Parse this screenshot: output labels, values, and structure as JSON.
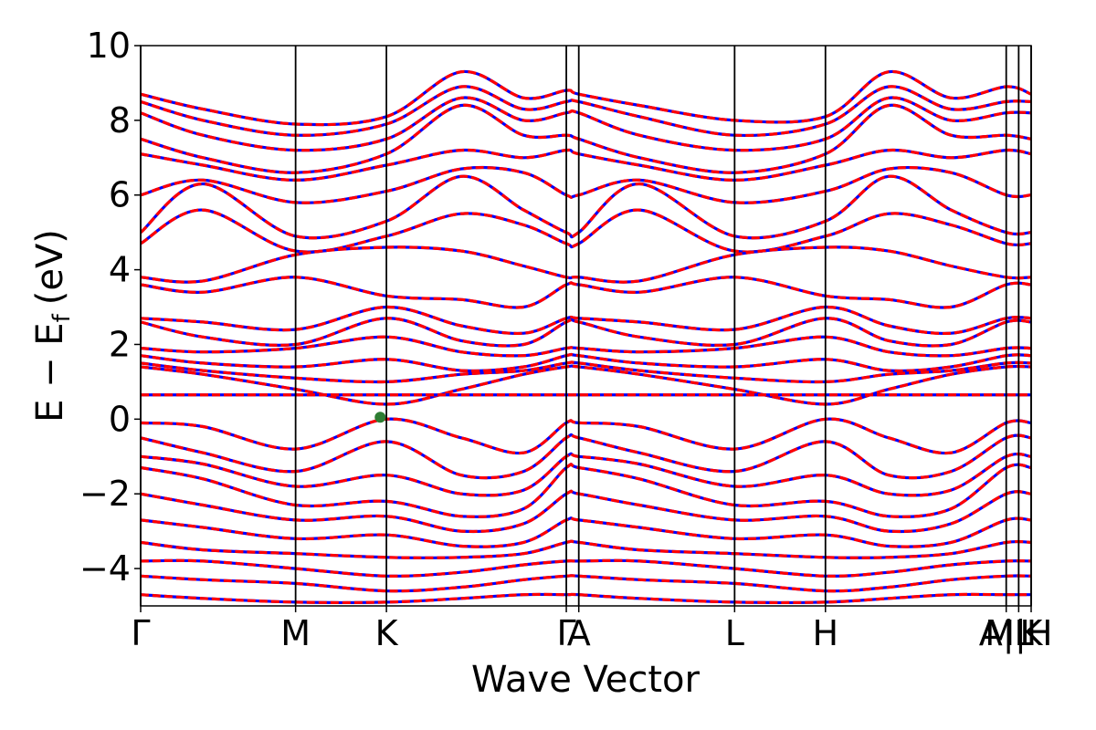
{
  "chart_data": {
    "type": "line",
    "title": "",
    "xlabel": "Wave Vector",
    "ylabel": "E − E",
    "ylabel_subscript": "f",
    "ylabel_unit": "(eV)",
    "ylim": [
      -5,
      10
    ],
    "yticks": [
      -4,
      -2,
      0,
      2,
      4,
      6,
      8,
      10
    ],
    "ytick_labels": [
      "−4",
      "−2",
      "0",
      "2",
      "4",
      "6",
      "8",
      "10"
    ],
    "xlim": [
      0,
      1
    ],
    "high_symmetry_points": [
      {
        "label": "Γ",
        "x": 0.0
      },
      {
        "label": "M",
        "x": 0.174
      },
      {
        "label": "K",
        "x": 0.276
      },
      {
        "label": "Γ",
        "x": 0.478
      },
      {
        "label": "A",
        "x": 0.492
      },
      {
        "label": "L",
        "x": 0.667
      },
      {
        "label": "H",
        "x": 0.769
      },
      {
        "label": "A|L",
        "x": 0.972
      },
      {
        "label": "M|H",
        "x": 0.986
      },
      {
        "label": "K",
        "x": 1.0
      }
    ],
    "fermi_flat_band": 0.65,
    "marker": {
      "x": 0.269,
      "y": 0.05,
      "color": "#2e7d32"
    },
    "colors": {
      "band_solid": "#0000ff",
      "band_dashed": "#ff0000",
      "vline": "#000000",
      "axes": "#000000"
    },
    "series": [
      {
        "values": [
          8.7,
          8.3,
          7.9,
          8.1,
          9.3,
          8.6,
          8.8,
          8.7,
          8.4,
          8.0,
          8.1,
          9.3,
          8.6,
          8.9,
          8.7
        ]
      },
      {
        "values": [
          8.5,
          8.0,
          7.6,
          7.9,
          8.9,
          8.3,
          8.5,
          8.5,
          8.1,
          7.6,
          7.9,
          8.9,
          8.3,
          8.5,
          8.5
        ]
      },
      {
        "values": [
          8.2,
          7.6,
          7.2,
          7.5,
          8.6,
          8.0,
          8.2,
          8.2,
          7.6,
          7.2,
          7.5,
          8.6,
          8.0,
          8.2,
          8.2
        ]
      },
      {
        "values": [
          7.5,
          7.0,
          6.6,
          7.1,
          8.4,
          7.6,
          7.6,
          7.5,
          7.0,
          6.6,
          7.1,
          8.4,
          7.6,
          7.6,
          7.5
        ]
      },
      {
        "values": [
          7.1,
          6.8,
          6.4,
          6.8,
          7.2,
          7.0,
          7.2,
          7.1,
          6.8,
          6.4,
          6.8,
          7.2,
          7.0,
          7.2,
          7.1
        ]
      },
      {
        "values": [
          6.0,
          6.4,
          5.8,
          6.1,
          6.7,
          6.6,
          6.0,
          6.0,
          6.4,
          5.8,
          6.1,
          6.7,
          6.6,
          6.0,
          6.0
        ]
      },
      {
        "values": [
          5.0,
          6.3,
          4.9,
          5.3,
          6.5,
          5.6,
          5.0,
          5.0,
          6.3,
          4.9,
          5.3,
          6.5,
          5.6,
          5.0,
          5.0
        ]
      },
      {
        "values": [
          4.7,
          5.6,
          4.5,
          4.9,
          5.5,
          5.2,
          4.7,
          4.7,
          5.6,
          4.5,
          4.9,
          5.5,
          5.2,
          4.7,
          4.7
        ]
      },
      {
        "values": [
          3.8,
          3.7,
          4.4,
          4.6,
          4.5,
          4.1,
          3.8,
          3.8,
          3.7,
          4.4,
          4.6,
          4.5,
          4.1,
          3.8,
          3.8
        ]
      },
      {
        "values": [
          3.6,
          3.4,
          3.8,
          3.3,
          3.2,
          3.0,
          3.6,
          3.6,
          3.4,
          3.8,
          3.3,
          3.2,
          3.0,
          3.6,
          3.6
        ]
      },
      {
        "values": [
          2.7,
          2.6,
          2.4,
          3.0,
          2.5,
          2.3,
          2.7,
          2.7,
          2.6,
          2.4,
          3.0,
          2.5,
          2.3,
          2.7,
          2.7
        ]
      },
      {
        "values": [
          2.6,
          2.2,
          2.0,
          2.7,
          2.1,
          2.0,
          2.6,
          2.6,
          2.2,
          2.0,
          2.7,
          2.1,
          2.0,
          2.6,
          2.6
        ]
      },
      {
        "values": [
          1.9,
          1.8,
          1.9,
          2.2,
          1.8,
          1.7,
          1.9,
          1.9,
          1.8,
          1.9,
          2.2,
          1.8,
          1.7,
          1.9,
          1.9
        ]
      },
      {
        "values": [
          1.7,
          1.5,
          1.4,
          1.6,
          1.3,
          1.4,
          1.7,
          1.7,
          1.5,
          1.4,
          1.6,
          1.3,
          1.4,
          1.7,
          1.7
        ]
      },
      {
        "values": [
          1.5,
          1.3,
          1.1,
          1.0,
          1.2,
          1.3,
          1.5,
          1.5,
          1.3,
          1.1,
          1.0,
          1.2,
          1.3,
          1.5,
          1.5
        ]
      },
      {
        "values": [
          1.4,
          1.2,
          0.8,
          0.4,
          0.8,
          1.2,
          1.4,
          1.4,
          1.2,
          0.8,
          0.4,
          0.8,
          1.2,
          1.4,
          1.4
        ]
      },
      {
        "values": [
          -0.1,
          -0.2,
          -0.8,
          0.0,
          -0.5,
          -0.9,
          -0.1,
          -0.1,
          -0.2,
          -0.8,
          0.0,
          -0.5,
          -0.9,
          -0.1,
          -0.1
        ]
      },
      {
        "values": [
          -0.5,
          -0.9,
          -1.4,
          -0.6,
          -1.5,
          -1.4,
          -0.5,
          -0.5,
          -0.9,
          -1.4,
          -0.6,
          -1.5,
          -1.4,
          -0.5,
          -0.5
        ]
      },
      {
        "values": [
          -1.0,
          -1.2,
          -1.8,
          -1.5,
          -2.0,
          -1.9,
          -1.0,
          -1.0,
          -1.2,
          -1.8,
          -1.5,
          -2.0,
          -1.9,
          -1.0,
          -1.0
        ]
      },
      {
        "values": [
          -1.3,
          -1.6,
          -2.3,
          -2.2,
          -2.6,
          -2.4,
          -1.3,
          -1.3,
          -1.6,
          -2.3,
          -2.2,
          -2.6,
          -2.4,
          -1.3,
          -1.3
        ]
      },
      {
        "values": [
          -2.0,
          -2.3,
          -2.7,
          -2.6,
          -3.0,
          -2.8,
          -2.0,
          -2.0,
          -2.3,
          -2.7,
          -2.6,
          -3.0,
          -2.8,
          -2.0,
          -2.0
        ]
      },
      {
        "values": [
          -2.7,
          -2.9,
          -3.2,
          -3.1,
          -3.4,
          -3.3,
          -2.7,
          -2.7,
          -2.9,
          -3.2,
          -3.1,
          -3.4,
          -3.3,
          -2.7,
          -2.7
        ]
      },
      {
        "values": [
          -3.3,
          -3.5,
          -3.6,
          -3.7,
          -3.7,
          -3.6,
          -3.3,
          -3.3,
          -3.5,
          -3.6,
          -3.7,
          -3.7,
          -3.6,
          -3.3,
          -3.3
        ]
      },
      {
        "values": [
          -3.8,
          -3.8,
          -4.0,
          -4.2,
          -4.1,
          -3.9,
          -3.8,
          -3.8,
          -3.8,
          -4.0,
          -4.2,
          -4.1,
          -3.9,
          -3.8,
          -3.8
        ]
      },
      {
        "values": [
          -4.2,
          -4.3,
          -4.4,
          -4.6,
          -4.5,
          -4.3,
          -4.2,
          -4.2,
          -4.3,
          -4.4,
          -4.6,
          -4.5,
          -4.3,
          -4.2,
          -4.2
        ]
      },
      {
        "values": [
          -4.7,
          -4.8,
          -4.9,
          -4.9,
          -4.8,
          -4.7,
          -4.7,
          -4.7,
          -4.8,
          -4.9,
          -4.9,
          -4.8,
          -4.7,
          -4.7,
          -4.7
        ]
      }
    ],
    "series_x": [
      0.0,
      0.07,
      0.174,
      0.276,
      0.36,
      0.43,
      0.478,
      0.492,
      0.56,
      0.667,
      0.769,
      0.84,
      0.91,
      0.972,
      1.0
    ],
    "grid": false
  }
}
